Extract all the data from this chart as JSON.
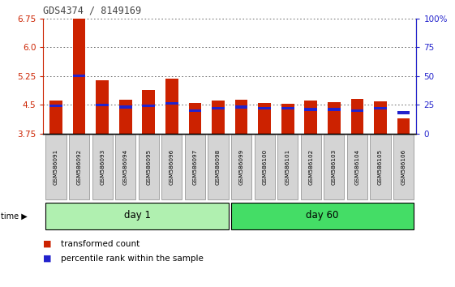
{
  "title": "GDS4374 / 8149169",
  "samples": [
    "GSM586091",
    "GSM586092",
    "GSM586093",
    "GSM586094",
    "GSM586095",
    "GSM586096",
    "GSM586097",
    "GSM586098",
    "GSM586099",
    "GSM586100",
    "GSM586101",
    "GSM586102",
    "GSM586103",
    "GSM586104",
    "GSM586105",
    "GSM586106"
  ],
  "red_values": [
    4.62,
    6.75,
    5.15,
    4.63,
    4.88,
    5.18,
    4.55,
    4.62,
    4.63,
    4.55,
    4.52,
    4.6,
    4.57,
    4.65,
    4.58,
    4.15
  ],
  "blue_values": [
    24,
    50,
    25,
    23,
    24,
    26,
    20,
    22,
    23,
    22,
    22,
    21,
    21,
    20,
    22,
    18
  ],
  "ymin": 3.75,
  "ymax": 6.75,
  "yticks_left": [
    3.75,
    4.5,
    5.25,
    6.0,
    6.75
  ],
  "yticks_right": [
    0,
    25,
    50,
    75,
    100
  ],
  "day1_samples": 8,
  "day60_samples": 8,
  "day1_label": "day 1",
  "day60_label": "day 60",
  "legend_red": "transformed count",
  "legend_blue": "percentile rank within the sample",
  "bg_plot": "#ffffff",
  "bg_tick": "#d4d4d4",
  "bg_day1": "#b0f0b0",
  "bg_day60": "#44dd66",
  "bar_color": "#cc2200",
  "blue_color": "#2222cc",
  "dotted_color": "#555555",
  "title_color": "#444444",
  "left_axis_color": "#cc2200",
  "right_axis_color": "#2222cc"
}
